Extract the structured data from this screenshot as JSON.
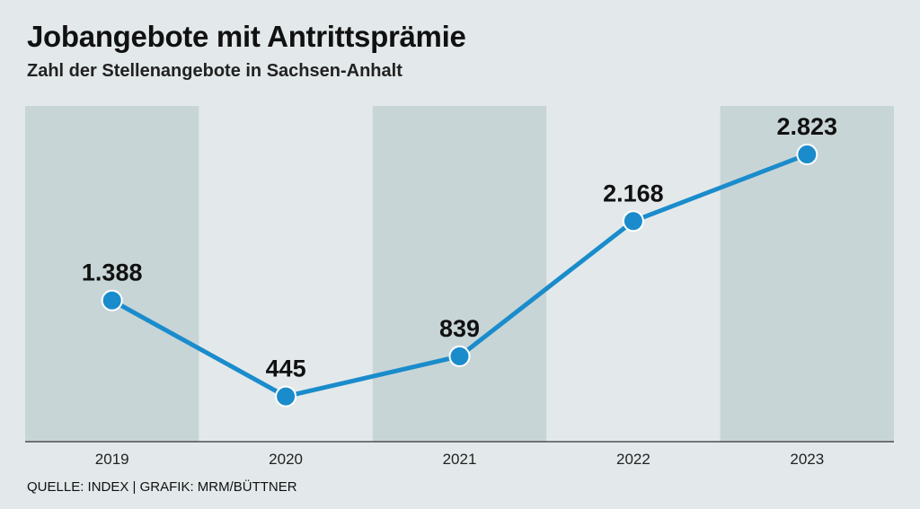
{
  "title": "Jobangebote mit Antrittsprämie",
  "subtitle": "Zahl der Stellenangebote in Sachsen-Anhalt",
  "source": "QUELLE: INDEX | GRAFIK: MRM/BÜTTNER",
  "colors": {
    "background": "#e3e9ea",
    "band": "#c8d5d7",
    "line": "#1a8ccc",
    "label": "#111111"
  },
  "chart_data": {
    "type": "line",
    "title": "Jobangebote mit Antrittsprämie",
    "subtitle": "Zahl der Stellenangebote in Sachsen-Anhalt",
    "xlabel": "",
    "ylabel": "",
    "categories": [
      "2019",
      "2020",
      "2021",
      "2022",
      "2023"
    ],
    "values": [
      1388,
      445,
      839,
      2168,
      2823
    ],
    "value_labels": [
      "1.388",
      "445",
      "839",
      "2.168",
      "2.823"
    ],
    "ylim": [
      0,
      3300
    ],
    "grid": false,
    "legend": "none",
    "shaded_bands": [
      "2019",
      "2021",
      "2023"
    ]
  }
}
